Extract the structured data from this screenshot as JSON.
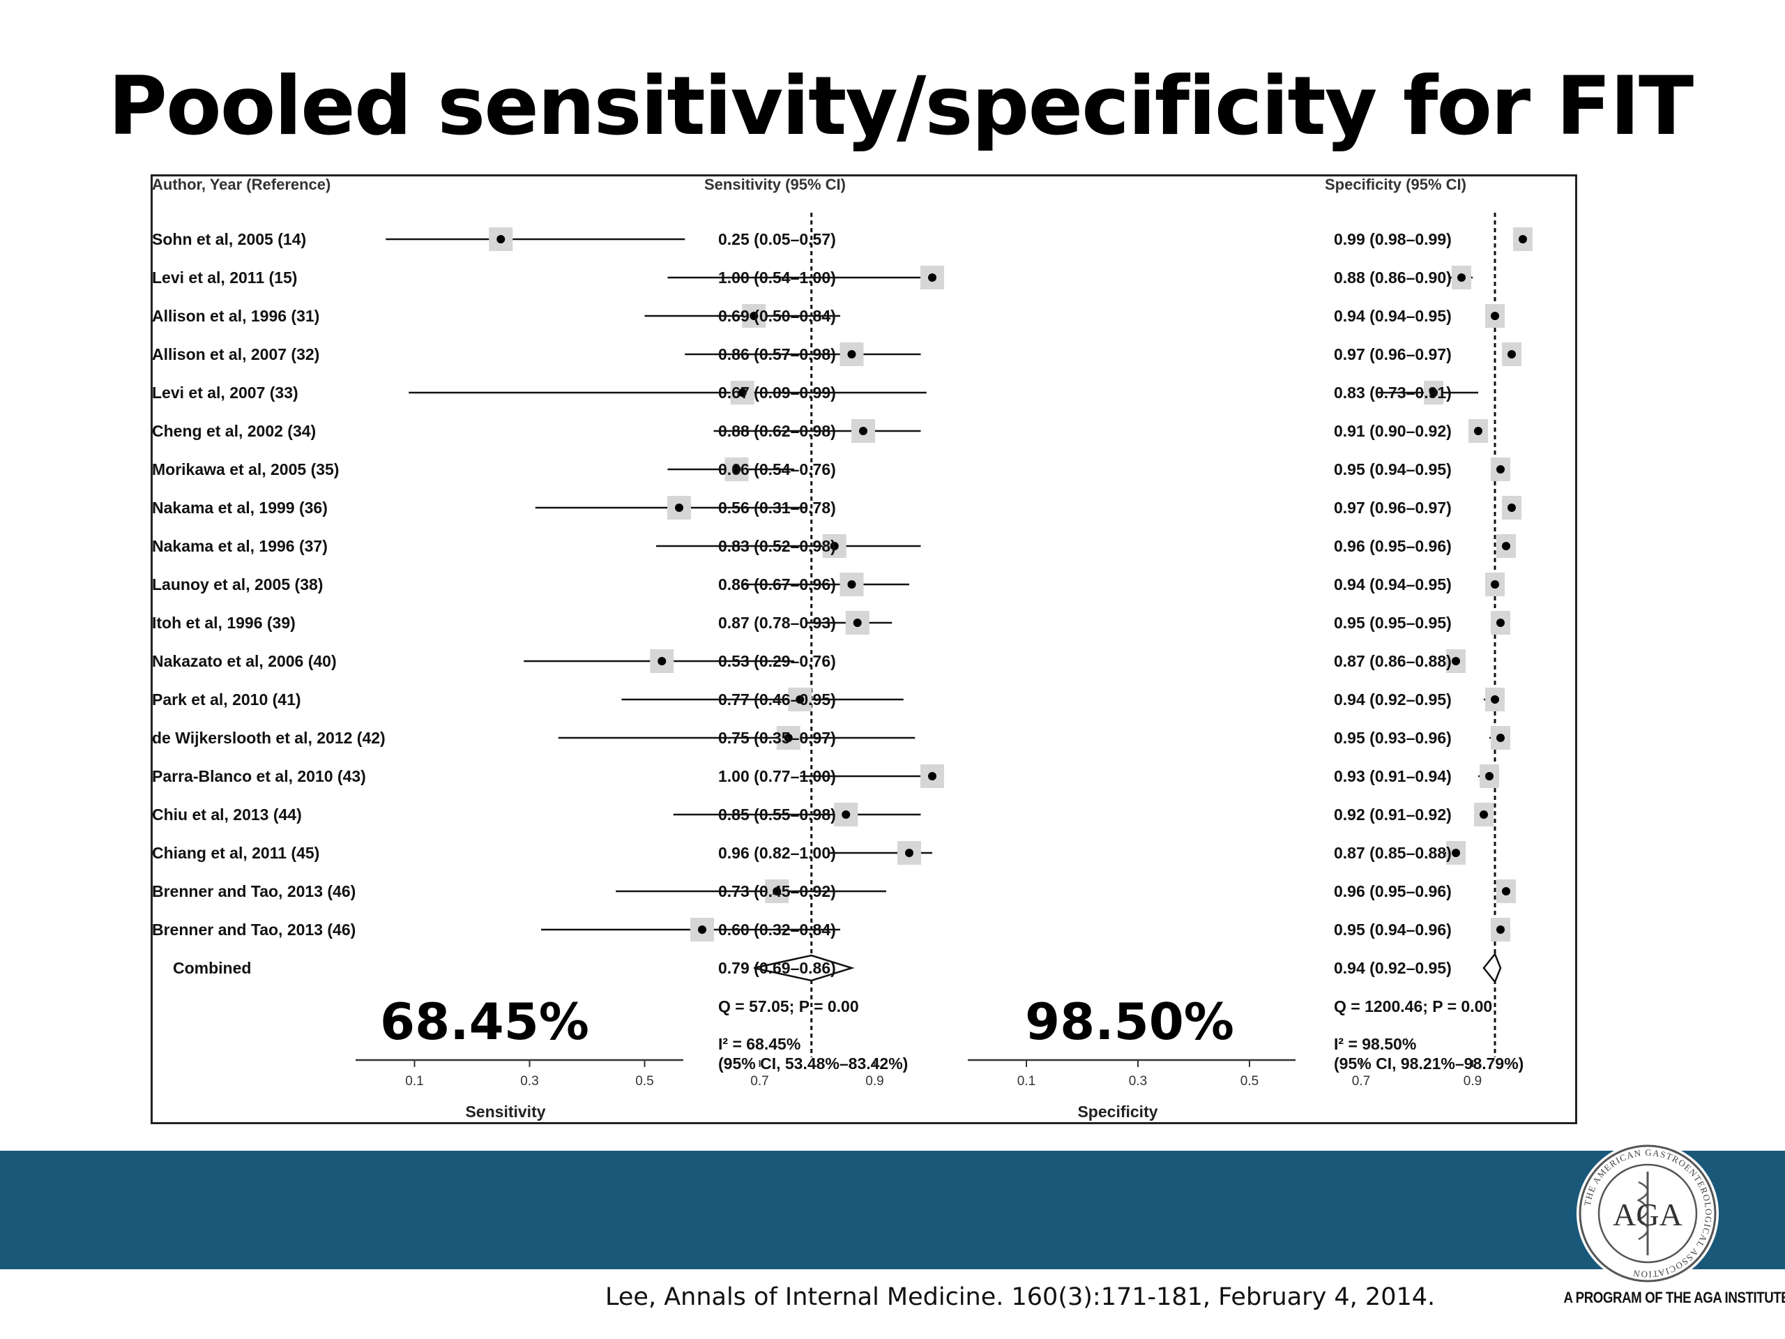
{
  "slide": {
    "title": "Pooled sensitivity/specificity for FIT",
    "citation": "Lee, Annals of Internal Medicine. 160(3):171-181, February 4, 2014.",
    "logo": {
      "name": "AGA seal",
      "text": "AGA",
      "ring_text": "THE AMERICAN GASTROENTEROLOGICAL ASSOCIATION",
      "tagline": "A PROGRAM OF THE AGA INSTITUTE"
    },
    "colors": {
      "band": "#1a587a",
      "box_shade": "#d6d6d6"
    }
  },
  "chart_data": {
    "type": "forest",
    "headers": {
      "author": "Author, Year (Reference)",
      "sensitivity": "Sensitivity (95% CI)",
      "specificity": "Specificity (95% CI)"
    },
    "studies": [
      {
        "label": "Sohn et al, 2005 (14)",
        "sens": 0.25,
        "sens_lo": 0.05,
        "sens_hi": 0.57,
        "sens_text": "0.25 (0.05–0.57)",
        "spec": 0.99,
        "spec_lo": 0.98,
        "spec_hi": 0.99,
        "spec_text": "0.99 (0.98–0.99)"
      },
      {
        "label": "Levi et al, 2011 (15)",
        "sens": 1.0,
        "sens_lo": 0.54,
        "sens_hi": 1.0,
        "sens_text": "1.00 (0.54–1.00)",
        "spec": 0.88,
        "spec_lo": 0.86,
        "spec_hi": 0.9,
        "spec_text": "0.88 (0.86–0.90)"
      },
      {
        "label": "Allison et al, 1996 (31)",
        "sens": 0.69,
        "sens_lo": 0.5,
        "sens_hi": 0.84,
        "sens_text": "0.69 (0.50–0.84)",
        "spec": 0.94,
        "spec_lo": 0.94,
        "spec_hi": 0.95,
        "spec_text": "0.94 (0.94–0.95)"
      },
      {
        "label": "Allison et al, 2007 (32)",
        "sens": 0.86,
        "sens_lo": 0.57,
        "sens_hi": 0.98,
        "sens_text": "0.86 (0.57–0.98)",
        "spec": 0.97,
        "spec_lo": 0.96,
        "spec_hi": 0.97,
        "spec_text": "0.97 (0.96–0.97)"
      },
      {
        "label": "Levi et al, 2007 (33)",
        "sens": 0.67,
        "sens_lo": 0.09,
        "sens_hi": 0.99,
        "sens_text": "0.67 (0.09–0.99)",
        "spec": 0.83,
        "spec_lo": 0.73,
        "spec_hi": 0.91,
        "spec_text": "0.83 (0.73–0.91)"
      },
      {
        "label": "Cheng et al, 2002 (34)",
        "sens": 0.88,
        "sens_lo": 0.62,
        "sens_hi": 0.98,
        "sens_text": "0.88 (0.62–0.98)",
        "spec": 0.91,
        "spec_lo": 0.9,
        "spec_hi": 0.92,
        "spec_text": "0.91 (0.90–0.92)"
      },
      {
        "label": "Morikawa et al, 2005 (35)",
        "sens": 0.66,
        "sens_lo": 0.54,
        "sens_hi": 0.76,
        "sens_text": "0.66 (0.54–0.76)",
        "spec": 0.95,
        "spec_lo": 0.94,
        "spec_hi": 0.95,
        "spec_text": "0.95 (0.94–0.95)"
      },
      {
        "label": "Nakama et al, 1999 (36)",
        "sens": 0.56,
        "sens_lo": 0.31,
        "sens_hi": 0.78,
        "sens_text": "0.56 (0.31–0.78)",
        "spec": 0.97,
        "spec_lo": 0.96,
        "spec_hi": 0.97,
        "spec_text": "0.97 (0.96–0.97)"
      },
      {
        "label": "Nakama et al, 1996 (37)",
        "sens": 0.83,
        "sens_lo": 0.52,
        "sens_hi": 0.98,
        "sens_text": "0.83 (0.52–0.98)",
        "spec": 0.96,
        "spec_lo": 0.95,
        "spec_hi": 0.96,
        "spec_text": "0.96 (0.95–0.96)"
      },
      {
        "label": "Launoy et al, 2005 (38)",
        "sens": 0.86,
        "sens_lo": 0.67,
        "sens_hi": 0.96,
        "sens_text": "0.86 (0.67–0.96)",
        "spec": 0.94,
        "spec_lo": 0.94,
        "spec_hi": 0.95,
        "spec_text": "0.94 (0.94–0.95)"
      },
      {
        "label": "Itoh et al, 1996 (39)",
        "sens": 0.87,
        "sens_lo": 0.78,
        "sens_hi": 0.93,
        "sens_text": "0.87 (0.78–0.93)",
        "spec": 0.95,
        "spec_lo": 0.95,
        "spec_hi": 0.95,
        "spec_text": "0.95 (0.95–0.95)"
      },
      {
        "label": "Nakazato et al, 2006 (40)",
        "sens": 0.53,
        "sens_lo": 0.29,
        "sens_hi": 0.76,
        "sens_text": "0.53 (0.29–0.76)",
        "spec": 0.87,
        "spec_lo": 0.86,
        "spec_hi": 0.88,
        "spec_text": "0.87 (0.86–0.88)"
      },
      {
        "label": "Park et al, 2010 (41)",
        "sens": 0.77,
        "sens_lo": 0.46,
        "sens_hi": 0.95,
        "sens_text": "0.77 (0.46–0.95)",
        "spec": 0.94,
        "spec_lo": 0.92,
        "spec_hi": 0.95,
        "spec_text": "0.94 (0.92–0.95)"
      },
      {
        "label": "de Wijkerslooth et al, 2012 (42)",
        "sens": 0.75,
        "sens_lo": 0.35,
        "sens_hi": 0.97,
        "sens_text": "0.75 (0.35–0.97)",
        "spec": 0.95,
        "spec_lo": 0.93,
        "spec_hi": 0.96,
        "spec_text": "0.95 (0.93–0.96)"
      },
      {
        "label": "Parra-Blanco et al, 2010 (43)",
        "sens": 1.0,
        "sens_lo": 0.77,
        "sens_hi": 1.0,
        "sens_text": "1.00 (0.77–1.00)",
        "spec": 0.93,
        "spec_lo": 0.91,
        "spec_hi": 0.94,
        "spec_text": "0.93 (0.91–0.94)"
      },
      {
        "label": "Chiu et al, 2013 (44)",
        "sens": 0.85,
        "sens_lo": 0.55,
        "sens_hi": 0.98,
        "sens_text": "0.85 (0.55–0.98)",
        "spec": 0.92,
        "spec_lo": 0.91,
        "spec_hi": 0.92,
        "spec_text": "0.92 (0.91–0.92)"
      },
      {
        "label": "Chiang et al, 2011 (45)",
        "sens": 0.96,
        "sens_lo": 0.82,
        "sens_hi": 1.0,
        "sens_text": "0.96 (0.82–1.00)",
        "spec": 0.87,
        "spec_lo": 0.85,
        "spec_hi": 0.88,
        "spec_text": "0.87 (0.85–0.88)"
      },
      {
        "label": "Brenner and Tao, 2013 (46)",
        "sens": 0.73,
        "sens_lo": 0.45,
        "sens_hi": 0.92,
        "sens_text": "0.73 (0.45–0.92)",
        "spec": 0.96,
        "spec_lo": 0.95,
        "spec_hi": 0.96,
        "spec_text": "0.96 (0.95–0.96)"
      },
      {
        "label": "Brenner and Tao, 2013 (46)",
        "sens": 0.6,
        "sens_lo": 0.32,
        "sens_hi": 0.84,
        "sens_text": "0.60 (0.32–0.84)",
        "spec": 0.95,
        "spec_lo": 0.94,
        "spec_hi": 0.96,
        "spec_text": "0.95 (0.94–0.96)"
      }
    ],
    "combined": {
      "label": "Combined",
      "sens": 0.79,
      "sens_lo": 0.69,
      "sens_hi": 0.86,
      "sens_text": "0.79 (0.69–0.86)",
      "spec": 0.94,
      "spec_lo": 0.92,
      "spec_hi": 0.95,
      "spec_text": "0.94 (0.92–0.95)"
    },
    "heterogeneity": {
      "sensitivity": {
        "q_text": "Q = 57.05; P = 0.00",
        "i2_text": "I² = 68.45%",
        "ci_text": "(95% CI, 53.48%–83.42%)",
        "highlight": "68.45%"
      },
      "specificity": {
        "q_text": "Q = 1200.46; P = 0.00",
        "i2_text": "I² = 98.50%",
        "ci_text": "(95% CI, 98.21%–98.79%)",
        "highlight": "98.50%"
      }
    },
    "x_ticks": [
      0.1,
      0.3,
      0.5,
      0.7,
      0.9
    ],
    "x_tick_labels": [
      "0.1",
      "0.3",
      "0.5",
      "0.7",
      "0.9"
    ],
    "xlim": [
      0.0,
      1.1
    ],
    "xlabels": {
      "sensitivity": "Sensitivity",
      "specificity": "Specificity"
    }
  }
}
